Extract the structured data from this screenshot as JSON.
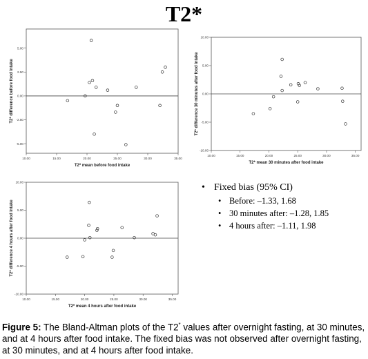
{
  "figure": {
    "title": "T2*",
    "caption_label": "Figure 5:",
    "caption_text_1": " The Bland-Altman plots of the T2",
    "caption_sup": "*",
    "caption_text_2": " values after overnight fasting, at 30 minutes, and at 4 hours after food intake. The fixed bias was not observed after overnight fasting, at 30 minutes, and at 4 hours after food intake."
  },
  "legend": {
    "heading": "Fixed bias (95% CI)",
    "items": [
      {
        "label": "Before: –1.33, 1.68"
      },
      {
        "label": "30 minutes after: –1.28, 1.85"
      },
      {
        "label": "4 hours after: –1.11, 1.98"
      }
    ]
  },
  "chart_data": [
    {
      "type": "scatter",
      "xlabel": "T2* mean before food intake",
      "ylabel": "T2* difference before food intake",
      "xlim": [
        10,
        35
      ],
      "ylim": [
        -6,
        7
      ],
      "xticks": [
        "10.00",
        "15.00",
        "20.00",
        "25.00",
        "30.00",
        "35.00"
      ],
      "yticks": [
        "-5.00",
        "-2.50",
        "0.00",
        "2.50",
        "5.00"
      ],
      "xtick_values": [
        10,
        15,
        20,
        25,
        30,
        35
      ],
      "ytick_values": [
        -5,
        -2.5,
        0,
        2.5,
        5
      ],
      "reference_line_y": 0,
      "grid": false,
      "points": [
        {
          "x": 16.8,
          "y": -0.5
        },
        {
          "x": 19.7,
          "y": 0.0
        },
        {
          "x": 20.4,
          "y": 1.4
        },
        {
          "x": 20.7,
          "y": 5.8
        },
        {
          "x": 20.9,
          "y": 1.6
        },
        {
          "x": 21.2,
          "y": -4.0
        },
        {
          "x": 21.5,
          "y": 0.9
        },
        {
          "x": 23.4,
          "y": 0.6
        },
        {
          "x": 24.7,
          "y": -1.7
        },
        {
          "x": 25.0,
          "y": -1.0
        },
        {
          "x": 26.4,
          "y": -5.1
        },
        {
          "x": 28.1,
          "y": 0.9
        },
        {
          "x": 32.0,
          "y": -1.0
        },
        {
          "x": 32.4,
          "y": 2.5
        },
        {
          "x": 32.9,
          "y": 3.0
        }
      ]
    },
    {
      "type": "scatter",
      "xlabel": "T2* mean 30 minutes after food intake",
      "ylabel": "T2* difference 30 minutes after food intake",
      "xlim": [
        10,
        36
      ],
      "ylim": [
        -10,
        10
      ],
      "xticks": [
        "10.00",
        "15.00",
        "20.00",
        "25.00",
        "30.00",
        "35.00"
      ],
      "yticks": [
        "-10.00",
        "-5.00",
        "0.00",
        "5.00",
        "10.00"
      ],
      "xtick_values": [
        10,
        15,
        20,
        25,
        30,
        35
      ],
      "ytick_values": [
        -10,
        -5,
        0,
        5,
        10
      ],
      "reference_line_y": 0,
      "grid": false,
      "points": [
        {
          "x": 17.3,
          "y": -3.5
        },
        {
          "x": 20.2,
          "y": -2.6
        },
        {
          "x": 20.8,
          "y": -0.5
        },
        {
          "x": 22.1,
          "y": 3.1
        },
        {
          "x": 22.3,
          "y": 6.1
        },
        {
          "x": 22.3,
          "y": 0.6
        },
        {
          "x": 23.8,
          "y": 1.6
        },
        {
          "x": 25.0,
          "y": -1.4
        },
        {
          "x": 25.1,
          "y": 1.8
        },
        {
          "x": 25.3,
          "y": 1.5
        },
        {
          "x": 26.3,
          "y": 2.0
        },
        {
          "x": 28.5,
          "y": 0.9
        },
        {
          "x": 32.7,
          "y": 1.0
        },
        {
          "x": 32.8,
          "y": -1.3
        },
        {
          "x": 33.3,
          "y": -5.3
        }
      ]
    },
    {
      "type": "scatter",
      "xlabel": "T2* mean 4 hours after food intake",
      "ylabel": "T2* difference 4 hours after food intake",
      "xlim": [
        10,
        36
      ],
      "ylim": [
        -10,
        10
      ],
      "xticks": [
        "10.00",
        "15.00",
        "20.00",
        "25.00",
        "30.00",
        "35.00"
      ],
      "yticks": [
        "-10.00",
        "-5.00",
        "0.00",
        "5.00",
        "10.00"
      ],
      "xtick_values": [
        10,
        15,
        20,
        25,
        30,
        35
      ],
      "ytick_values": [
        -10,
        -5,
        0,
        5,
        10
      ],
      "reference_line_y": 0,
      "grid": false,
      "points": [
        {
          "x": 17.0,
          "y": -3.4
        },
        {
          "x": 19.7,
          "y": -3.3
        },
        {
          "x": 20.0,
          "y": -0.3
        },
        {
          "x": 20.8,
          "y": 6.4
        },
        {
          "x": 20.7,
          "y": 2.3
        },
        {
          "x": 20.9,
          "y": 0.1
        },
        {
          "x": 22.1,
          "y": 1.4
        },
        {
          "x": 22.2,
          "y": 1.7
        },
        {
          "x": 24.7,
          "y": -3.4
        },
        {
          "x": 24.9,
          "y": -2.2
        },
        {
          "x": 26.4,
          "y": 1.9
        },
        {
          "x": 28.5,
          "y": 0.1
        },
        {
          "x": 31.7,
          "y": 0.8
        },
        {
          "x": 32.1,
          "y": 0.6
        },
        {
          "x": 32.4,
          "y": 4.0
        }
      ]
    }
  ]
}
